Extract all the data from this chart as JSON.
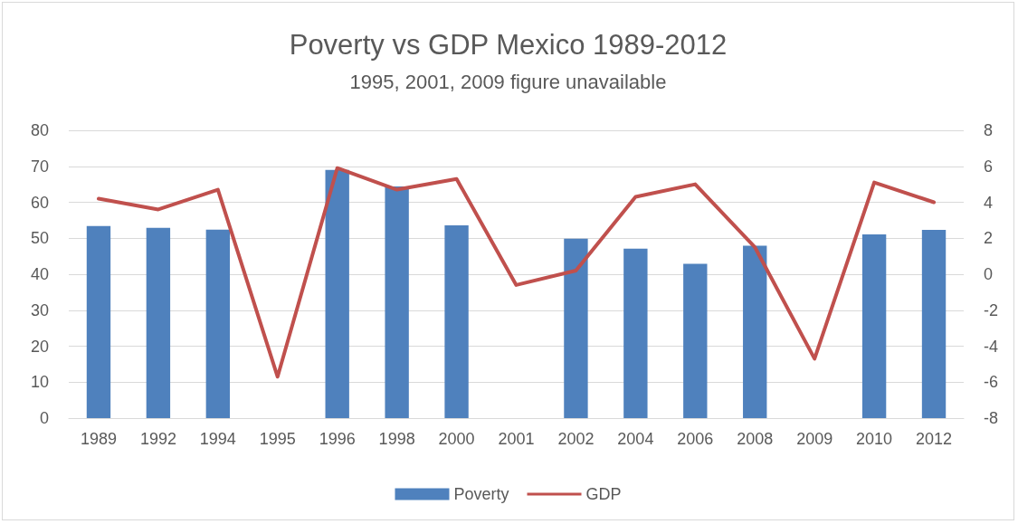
{
  "chart_data": {
    "type": "bar",
    "title": "Poverty vs GDP Mexico 1989-2012",
    "subtitle": "1995, 2001, 2009 figure unavailable",
    "categories": [
      "1989",
      "1992",
      "1994",
      "1995",
      "1996",
      "1998",
      "2000",
      "2001",
      "2002",
      "2004",
      "2006",
      "2008",
      "2009",
      "2010",
      "2012"
    ],
    "series": [
      {
        "name": "Poverty",
        "color": "#4f81bd",
        "values": [
          53.4,
          52.9,
          52.4,
          null,
          69,
          64.4,
          53.6,
          null,
          49.9,
          47.1,
          42.9,
          47.9,
          null,
          51.1,
          52.3
        ]
      },
      {
        "name": "GDP",
        "type": "line",
        "axis": "y2",
        "color": "#c0504d",
        "values": [
          4.2,
          3.6,
          4.7,
          -5.7,
          5.9,
          4.7,
          5.3,
          -0.6,
          0.2,
          4.3,
          5.0,
          1.5,
          -4.7,
          5.1,
          4.0
        ]
      }
    ],
    "ylim": [
      0,
      80
    ],
    "yticks": [
      0,
      10,
      20,
      30,
      40,
      50,
      60,
      70,
      80
    ],
    "y2lim": [
      -8,
      8
    ],
    "y2ticks": [
      -8,
      -6,
      -4,
      -2,
      0,
      2,
      4,
      6,
      8
    ],
    "grid": "y",
    "legend": "bottom",
    "marker": "none",
    "line_style": "solid"
  }
}
